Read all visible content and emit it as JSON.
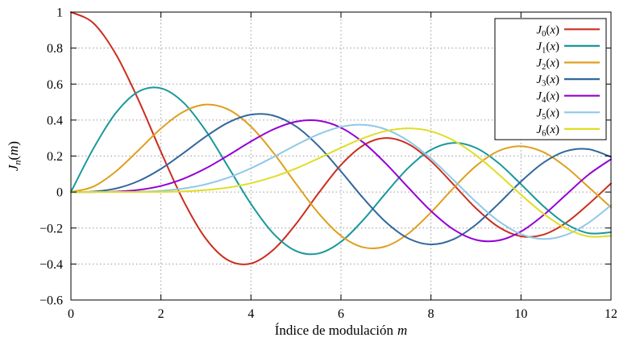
{
  "chart_data": {
    "type": "line",
    "title": "",
    "xlabel_text": "Índice de modulación",
    "xlabel_math": "m",
    "ylabel": "J_n(m)",
    "xlim": [
      0,
      12
    ],
    "ylim": [
      -0.6,
      1
    ],
    "x_ticks": [
      0,
      2,
      4,
      6,
      8,
      10,
      12
    ],
    "y_ticks": [
      -0.6,
      -0.4,
      -0.2,
      0,
      0.2,
      0.4,
      0.6,
      0.8,
      1
    ],
    "grid": "dotted",
    "legend_position": "top-right-inside",
    "x": [
      0,
      0.5,
      1,
      1.5,
      2,
      2.5,
      3,
      3.5,
      4,
      4.5,
      5,
      5.5,
      6,
      6.5,
      7,
      7.5,
      8,
      8.5,
      9,
      9.5,
      10,
      10.5,
      11,
      11.5,
      12
    ],
    "series": [
      {
        "name": "J_0(x)",
        "color": "#cc2d1e",
        "values": [
          1,
          0.9385,
          0.7652,
          0.5118,
          0.2239,
          -0.0484,
          -0.2601,
          -0.3801,
          -0.3971,
          -0.3205,
          -0.1776,
          -0.0068,
          0.1506,
          0.2601,
          0.3001,
          0.2663,
          0.1717,
          0.0419,
          -0.0903,
          -0.1939,
          -0.2459,
          -0.2366,
          -0.1712,
          -0.0677,
          0.0477
        ]
      },
      {
        "name": "J_1(x)",
        "color": "#18989b",
        "values": [
          0,
          0.2423,
          0.4401,
          0.5579,
          0.5767,
          0.4971,
          0.3391,
          0.1374,
          -0.066,
          -0.2311,
          -0.3276,
          -0.3414,
          -0.2767,
          -0.1538,
          -0.0047,
          0.1352,
          0.2346,
          0.2731,
          0.2453,
          0.1613,
          0.0435,
          -0.0788,
          -0.1768,
          -0.2284,
          -0.2234
        ]
      },
      {
        "name": "J_2(x)",
        "color": "#df9f1f",
        "values": [
          0,
          0.0306,
          0.1149,
          0.2321,
          0.3528,
          0.4461,
          0.4861,
          0.4586,
          0.3641,
          0.2178,
          0.0466,
          -0.1173,
          -0.2429,
          -0.3074,
          -0.3014,
          -0.2303,
          -0.113,
          0.0223,
          0.1448,
          0.2279,
          0.2546,
          0.2216,
          0.139,
          0.0279,
          -0.0849
        ]
      },
      {
        "name": "J_3(x)",
        "color": "#33679d",
        "values": [
          0,
          0.0026,
          0.0196,
          0.061,
          0.1289,
          0.2166,
          0.3091,
          0.3868,
          0.4302,
          0.4247,
          0.3648,
          0.2561,
          0.1148,
          -0.0353,
          -0.1676,
          -0.2581,
          -0.2911,
          -0.2626,
          -0.1809,
          -0.0653,
          0.0584,
          0.1633,
          0.2273,
          0.2381,
          0.1951
        ]
      },
      {
        "name": "J_4(x)",
        "color": "#9400d3",
        "values": [
          0,
          0.0002,
          0.0025,
          0.0118,
          0.034,
          0.0738,
          0.132,
          0.2044,
          0.2811,
          0.3484,
          0.3912,
          0.3967,
          0.3576,
          0.2748,
          0.1578,
          0.0238,
          -0.1054,
          -0.2077,
          -0.2655,
          -0.2691,
          -0.2196,
          -0.1283,
          -0.015,
          0.0963,
          0.1825
        ]
      },
      {
        "name": "J_5(x)",
        "color": "#8fc8e8",
        "values": [
          0,
          0,
          0.0002,
          0.0018,
          0.007,
          0.0195,
          0.043,
          0.0804,
          0.1321,
          0.1947,
          0.2611,
          0.3209,
          0.3621,
          0.3736,
          0.3479,
          0.2833,
          0.1858,
          0.0671,
          -0.055,
          -0.1613,
          -0.2341,
          -0.2611,
          -0.2383,
          -0.1711,
          -0.0735
        ]
      },
      {
        "name": "J_6(x)",
        "color": "#e0dd25",
        "values": [
          0,
          0,
          0,
          0.0002,
          0.0012,
          0.0042,
          0.0114,
          0.0254,
          0.0491,
          0.0843,
          0.131,
          0.1868,
          0.2458,
          0.2999,
          0.3392,
          0.3541,
          0.3376,
          0.2867,
          0.2043,
          0.0993,
          -0.0145,
          -0.1203,
          -0.2016,
          -0.2466,
          -0.2437
        ]
      }
    ],
    "colors": {
      "grid": "#999999",
      "border": "#000000",
      "text": "#000000",
      "background": "#ffffff"
    }
  }
}
